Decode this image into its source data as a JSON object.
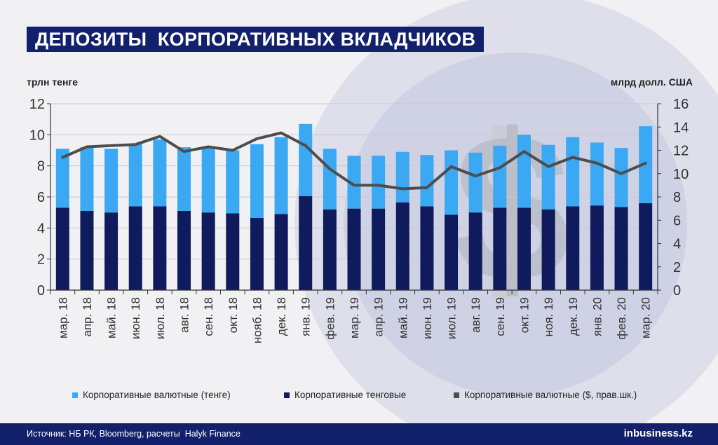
{
  "title": "ДЕПОЗИТЫ  КОРПОРАТИВНЫХ ВКЛАДЧИКОВ",
  "source": "Источник: НБ РК, Bloomberg, расчеты  Halyk Finance",
  "brand": "inbusiness.kz",
  "colors": {
    "fx_tenge": "#3aa8f2",
    "tenge": "#0f1b5c",
    "fx_usd": "#4d4d4d",
    "title_bg": "#13206b"
  },
  "chart_data": {
    "type": "bar",
    "stacked": true,
    "ylabel_left": "трлн тенге",
    "ylabel_right": "млрд долл. США",
    "ylim_left": [
      0,
      12
    ],
    "ylim_right": [
      0,
      16
    ],
    "yticks_left": [
      0,
      2,
      4,
      6,
      8,
      10,
      12
    ],
    "yticks_right": [
      0,
      2,
      4,
      6,
      8,
      10,
      12,
      14,
      16
    ],
    "categories": [
      "мар. 18",
      "апр. 18",
      "май. 18",
      "июн. 18",
      "июл. 18",
      "авг. 18",
      "сен. 18",
      "окт. 18",
      "нояб. 18",
      "дек. 18",
      "янв. 19",
      "фев. 19",
      "мар. 19",
      "апр. 19",
      "май. 19",
      "июн. 19",
      "июл. 19",
      "авг. 19",
      "сен. 19",
      "окт. 19",
      "ноя. 19",
      "дек. 19",
      "янв. 20",
      "фев. 20",
      "мар. 20"
    ],
    "series": [
      {
        "name": "Корпоративные тенговые",
        "type": "bar",
        "axis": "left",
        "values": [
          5.3,
          5.1,
          5.0,
          5.4,
          5.4,
          5.1,
          5.0,
          4.95,
          4.65,
          4.9,
          6.05,
          5.2,
          5.25,
          5.25,
          5.65,
          5.4,
          4.85,
          5.0,
          5.3,
          5.3,
          5.2,
          5.4,
          5.45,
          5.35,
          5.6
        ]
      },
      {
        "name": "Корпоративные валютные (тенге)",
        "type": "bar",
        "axis": "left",
        "values": [
          3.8,
          4.1,
          4.1,
          4.0,
          4.3,
          4.1,
          4.2,
          4.05,
          4.75,
          4.95,
          4.65,
          3.9,
          3.4,
          3.4,
          3.25,
          3.3,
          4.15,
          3.85,
          4.0,
          4.7,
          4.15,
          4.45,
          4.05,
          3.8,
          4.95
        ]
      },
      {
        "name": "Корпоративные валютные ($, прав.шк.)",
        "type": "line",
        "axis": "right",
        "values": [
          11.4,
          12.3,
          12.4,
          12.5,
          13.2,
          11.9,
          12.3,
          12.0,
          13.0,
          13.5,
          12.4,
          10.4,
          9.0,
          9.0,
          8.7,
          8.8,
          10.6,
          9.8,
          10.5,
          11.9,
          10.6,
          11.4,
          10.9,
          10.0,
          10.9
        ]
      }
    ],
    "legend_position": "bottom",
    "grid": "horizontal"
  }
}
